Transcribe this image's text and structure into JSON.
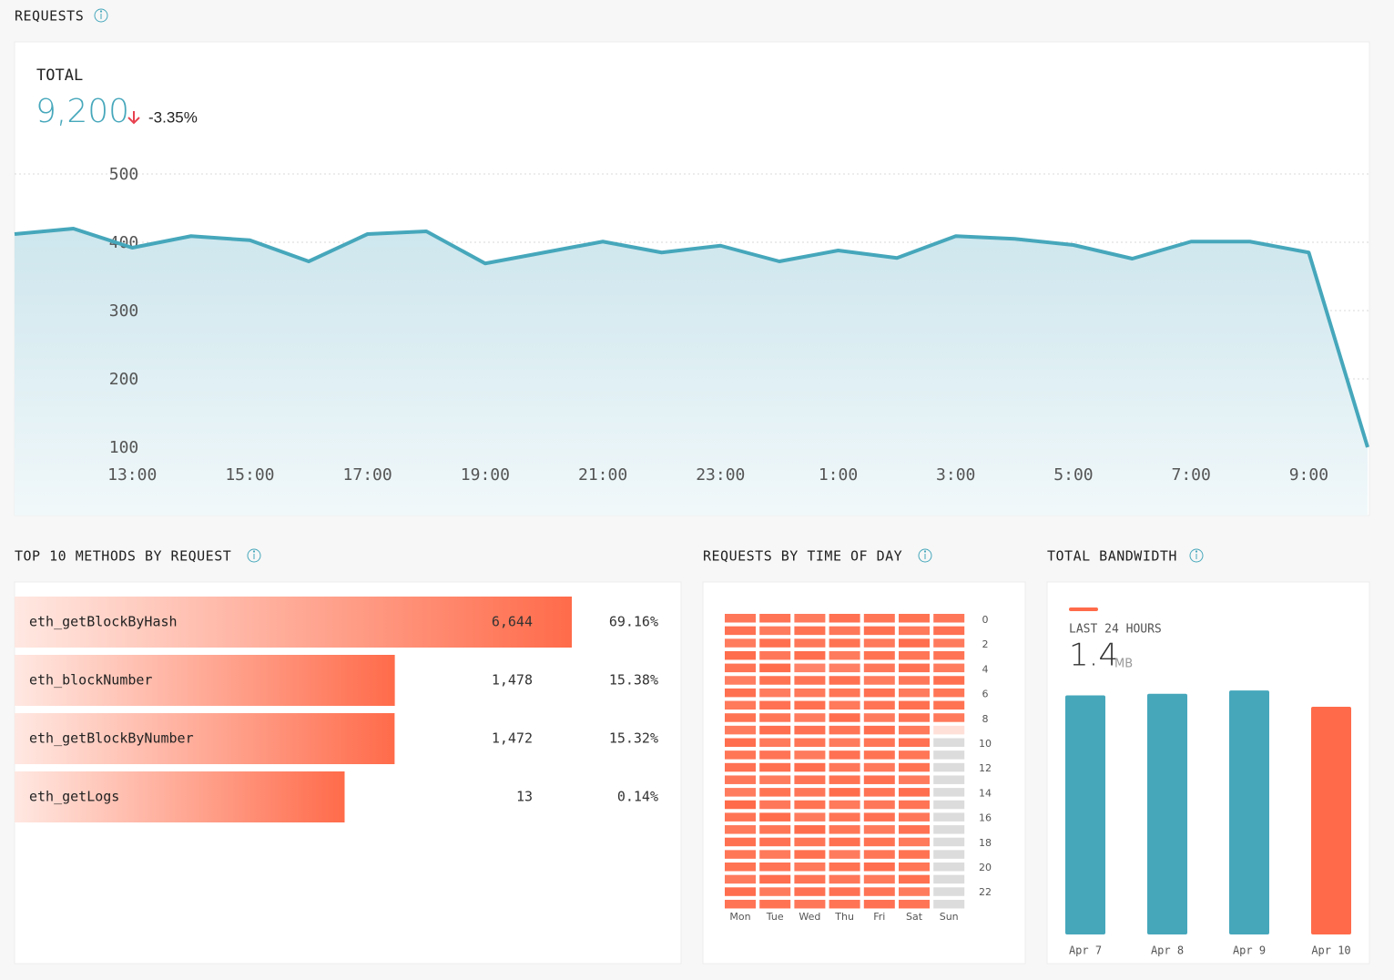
{
  "chart_data": [
    {
      "type": "line",
      "title": "REQUESTS",
      "total_label": "TOTAL",
      "total_value": "9,200",
      "change": "-3.35%",
      "categories": [
        null,
        null,
        "13:00",
        null,
        "15:00",
        null,
        "17:00",
        null,
        "19:00",
        null,
        "21:00",
        null,
        "23:00",
        null,
        "1:00",
        null,
        "3:00",
        null,
        "5:00",
        null,
        "7:00",
        null,
        "9:00",
        null
      ],
      "values": [
        412,
        420,
        392,
        409,
        403,
        372,
        412,
        416,
        369,
        385,
        401,
        385,
        395,
        372,
        388,
        377,
        409,
        405,
        396,
        376,
        401,
        401,
        385,
        100
      ],
      "color": "#46a7bb",
      "ylim": [
        0,
        500
      ],
      "yticks": [
        100,
        200,
        300,
        400,
        500
      ],
      "grid": true
    },
    {
      "type": "bar",
      "orientation": "horizontal",
      "title": "TOP 10 METHODS BY REQUEST",
      "categories": [
        "eth_getBlockByHash",
        "eth_blockNumber",
        "eth_getBlockByNumber",
        "eth_getLogs"
      ],
      "values": [
        6644,
        1478,
        1472,
        13
      ],
      "value_labels": [
        "6,644",
        "1,478",
        "1,472",
        "13"
      ],
      "percent_labels": [
        "69.16%",
        "15.38%",
        "15.32%",
        "0.14%"
      ],
      "color": "#ff6b4a"
    },
    {
      "type": "heatmap",
      "title": "REQUESTS BY TIME OF DAY",
      "x": [
        "Mon",
        "Tue",
        "Wed",
        "Thu",
        "Fri",
        "Sat",
        "Sun"
      ],
      "y": [
        0,
        null,
        2,
        null,
        4,
        null,
        6,
        null,
        8,
        null,
        10,
        null,
        12,
        null,
        14,
        null,
        16,
        null,
        18,
        null,
        20,
        null,
        22,
        null
      ],
      "values": [
        [
          88,
          92,
          85,
          95,
          90,
          84,
          93,
          87,
          91,
          86,
          94,
          89,
          92,
          88,
          85,
          96,
          90,
          87,
          93,
          89,
          91,
          86,
          94,
          90
        ],
        [
          90,
          86,
          93,
          88,
          95,
          91,
          85,
          92,
          89,
          94,
          87,
          90,
          93,
          86,
          91,
          88,
          95,
          89,
          92,
          87,
          90,
          94,
          86,
          91
        ],
        [
          86,
          91,
          88,
          94,
          80,
          90,
          87,
          93,
          85,
          92,
          89,
          86,
          94,
          90,
          88,
          91,
          86,
          95,
          89,
          93,
          87,
          90,
          92,
          88
        ],
        [
          92,
          88,
          91,
          86,
          82,
          93,
          89,
          87,
          94,
          90,
          86,
          92,
          88,
          91,
          95,
          87,
          90,
          89,
          93,
          86,
          91,
          88,
          92,
          90
        ],
        [
          89,
          93,
          87,
          91,
          88,
          85,
          92,
          90,
          86,
          94,
          89,
          91,
          87,
          93,
          90,
          88,
          92,
          86,
          91,
          89,
          94,
          87,
          90,
          92
        ],
        [
          91,
          87,
          94,
          89,
          92,
          88,
          86,
          93,
          90,
          87,
          92,
          89,
          91,
          86,
          94,
          90,
          88,
          92,
          87,
          91,
          89,
          93,
          86,
          90
        ],
        [
          88,
          92,
          86,
          90,
          85,
          93,
          89,
          91,
          87,
          20,
          null,
          null,
          null,
          null,
          null,
          null,
          null,
          null,
          null,
          null,
          null,
          null,
          null,
          null
        ]
      ],
      "color": "#ff6b4a",
      "empty_color": "#dcdcdc"
    },
    {
      "type": "bar",
      "title": "TOTAL BANDWIDTH",
      "legend_label": "LAST 24 HOURS",
      "summary_value": "1.4",
      "summary_unit": "MB",
      "categories": [
        "Apr 7",
        "Apr 8",
        "Apr 9",
        "Apr 10"
      ],
      "values": [
        1.47,
        1.48,
        1.5,
        1.4
      ],
      "colors": [
        "#46a7bb",
        "#46a7bb",
        "#46a7bb",
        "#ff6b4a"
      ],
      "ylim": [
        0,
        1.6
      ]
    }
  ]
}
